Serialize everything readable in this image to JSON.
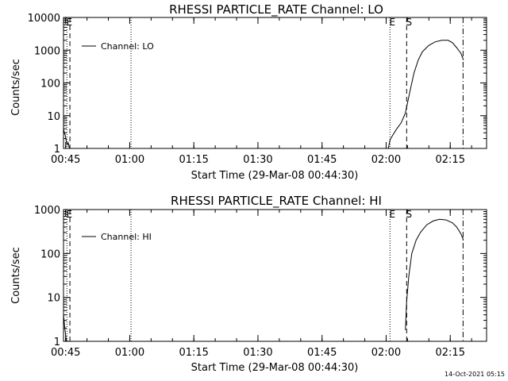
{
  "chart_data": [
    {
      "type": "line",
      "title": "RHESSI PARTICLE_RATE Channel: LO",
      "xlabel": "Start Time (29-Mar-08 00:44:30)",
      "ylabel": "Counts/sec",
      "y_scale": "log",
      "xlim_minutes_from_start": [
        0,
        99
      ],
      "ylim": [
        1,
        10000
      ],
      "x_tick_labels": [
        "00:45",
        "01:00",
        "01:15",
        "01:30",
        "01:45",
        "02:00",
        "02:15"
      ],
      "x_tick_minutes": [
        0.5,
        15.5,
        30.5,
        45.5,
        60.5,
        75.5,
        90.5
      ],
      "y_tick_labels": [
        "1",
        "10",
        "100",
        "1000",
        "10000"
      ],
      "y_tick_values": [
        1,
        10,
        100,
        1000,
        10000
      ],
      "legend": {
        "label": "Channel: LO",
        "placement": "top-left"
      },
      "markers": [
        {
          "label": "E",
          "minute": 0.8,
          "style": "dotted"
        },
        {
          "label": "",
          "minute": 1.5,
          "style": "dashed"
        },
        {
          "label": "",
          "minute": 15.8,
          "style": "dotted"
        },
        {
          "label": "E",
          "minute": 76.4,
          "style": "dotted"
        },
        {
          "label": "S",
          "minute": 80.3,
          "style": "dashed"
        },
        {
          "label": "",
          "minute": 93.5,
          "style": "dashdot"
        }
      ],
      "series": [
        {
          "name": "Channel: LO",
          "points": [
            [
              0.0,
              4
            ],
            [
              0.2,
              3
            ],
            [
              0.4,
              2.5
            ],
            [
              0.7,
              1.5
            ],
            [
              0.9,
              1.3
            ],
            [
              1.1,
              1.5
            ],
            [
              1.3,
              1.1
            ],
            [
              1.5,
              1
            ],
            [
              76.0,
              1
            ],
            [
              76.4,
              1.8
            ],
            [
              77.0,
              2.5
            ],
            [
              78.0,
              4
            ],
            [
              79.0,
              6
            ],
            [
              80.0,
              12
            ],
            [
              81.0,
              50
            ],
            [
              82.0,
              200
            ],
            [
              83.0,
              500
            ],
            [
              84.0,
              900
            ],
            [
              85.5,
              1400
            ],
            [
              87.0,
              1800
            ],
            [
              88.5,
              2000
            ],
            [
              90.0,
              2000
            ],
            [
              91.0,
              1700
            ],
            [
              92.0,
              1200
            ],
            [
              93.0,
              800
            ],
            [
              93.6,
              500
            ]
          ]
        }
      ]
    },
    {
      "type": "line",
      "title": "RHESSI PARTICLE_RATE Channel: HI",
      "xlabel": "Start Time (29-Mar-08 00:44:30)",
      "ylabel": "Counts/sec",
      "y_scale": "log",
      "xlim_minutes_from_start": [
        0,
        99
      ],
      "ylim": [
        1,
        1000
      ],
      "x_tick_labels": [
        "00:45",
        "01:00",
        "01:15",
        "01:30",
        "01:45",
        "02:00",
        "02:15"
      ],
      "x_tick_minutes": [
        0.5,
        15.5,
        30.5,
        45.5,
        60.5,
        75.5,
        90.5
      ],
      "y_tick_labels": [
        "1",
        "10",
        "100",
        "1000"
      ],
      "y_tick_values": [
        1,
        10,
        100,
        1000
      ],
      "legend": {
        "label": "Channel: HI",
        "placement": "top-left"
      },
      "markers": [
        {
          "label": "E",
          "minute": 0.8,
          "style": "dotted"
        },
        {
          "label": "",
          "minute": 1.5,
          "style": "dashed"
        },
        {
          "label": "",
          "minute": 15.8,
          "style": "dotted"
        },
        {
          "label": "E",
          "minute": 76.4,
          "style": "dotted"
        },
        {
          "label": "S",
          "minute": 80.3,
          "style": "dashed"
        },
        {
          "label": "",
          "minute": 93.5,
          "style": "dashdot"
        }
      ],
      "series": [
        {
          "name": "Channel: HI",
          "points": [
            [
              0.0,
              4
            ],
            [
              0.3,
              2
            ],
            [
              0.6,
              1.2
            ],
            [
              0.8,
              1
            ],
            [
              80.0,
              1.8
            ],
            [
              80.3,
              8
            ],
            [
              80.8,
              30
            ],
            [
              81.5,
              100
            ],
            [
              82.5,
              200
            ],
            [
              83.5,
              300
            ],
            [
              85.0,
              450
            ],
            [
              86.5,
              550
            ],
            [
              88.0,
              600
            ],
            [
              89.5,
              580
            ],
            [
              91.0,
              500
            ],
            [
              92.0,
              400
            ],
            [
              93.0,
              280
            ],
            [
              93.6,
              200
            ]
          ]
        }
      ]
    }
  ],
  "footer": {
    "timestamp": "14-Oct-2021 05:15"
  }
}
